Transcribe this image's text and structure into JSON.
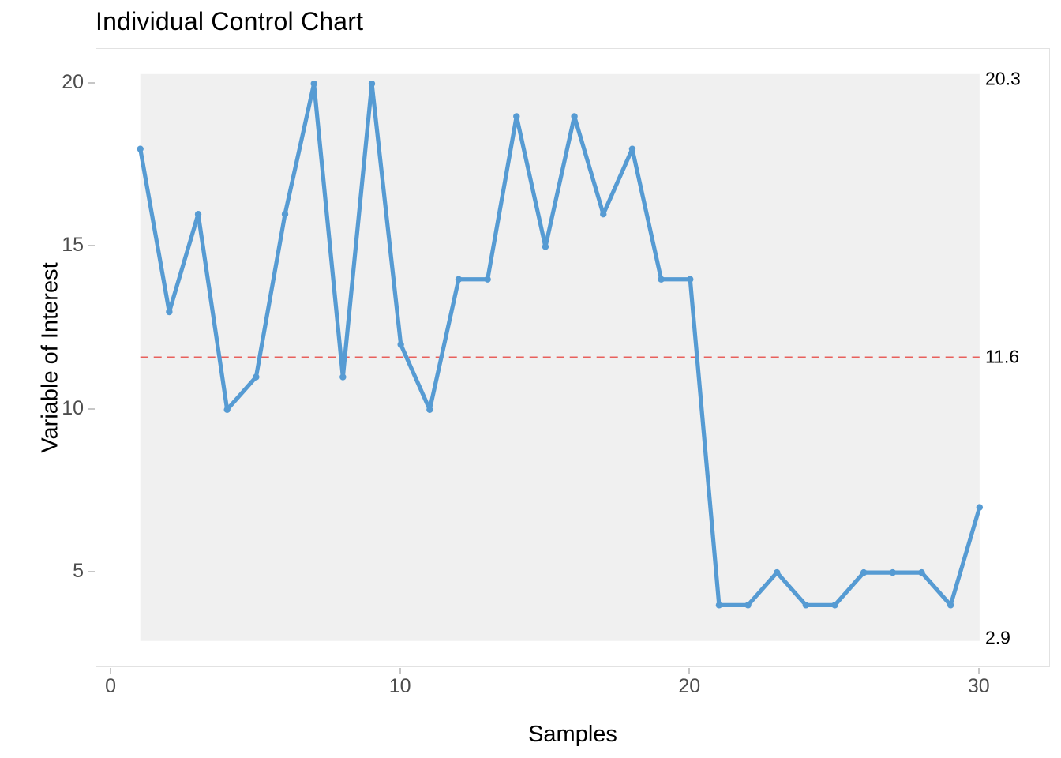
{
  "title": "Individual Control Chart",
  "x_axis": {
    "label": "Samples",
    "ticks": [
      0,
      10,
      20,
      30
    ]
  },
  "y_axis": {
    "label": "Variable of Interest",
    "ticks": [
      20,
      15,
      10,
      5
    ]
  },
  "annotations": {
    "ucl": "20.3",
    "cl": "11.6",
    "lcl": "2.9"
  },
  "chart_data": {
    "type": "line",
    "title": "Individual Control Chart",
    "xlabel": "Samples",
    "ylabel": "Variable of Interest",
    "x": [
      1,
      2,
      3,
      4,
      5,
      6,
      7,
      8,
      9,
      10,
      11,
      12,
      13,
      14,
      15,
      16,
      17,
      18,
      19,
      20,
      21,
      22,
      23,
      24,
      25,
      26,
      27,
      28,
      29,
      30
    ],
    "values": [
      18,
      13,
      16,
      10,
      11,
      16,
      20,
      11,
      20,
      12,
      10,
      14,
      14,
      19,
      15,
      19,
      16,
      18,
      14,
      14,
      4,
      4,
      5,
      4,
      4,
      5,
      5,
      5,
      4,
      7
    ],
    "center_line": 11.6,
    "upper_control_limit": 20.3,
    "lower_control_limit": 2.9,
    "xlim": [
      -0.52,
      32.46
    ],
    "ylim": [
      2.07,
      21.07
    ],
    "grid": false,
    "legend": false,
    "markers": true,
    "colors": {
      "series": "#569bd3",
      "center_line": "#e8605c",
      "control_band": "#f0f0f0",
      "tick_text": "#4d4d4d",
      "panel_border": "#e2e2e2"
    }
  }
}
